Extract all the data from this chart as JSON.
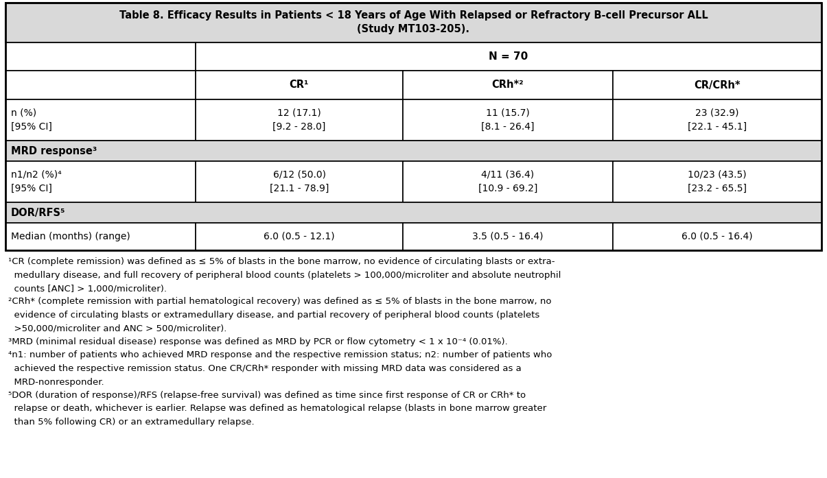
{
  "title_line1": "Table 8. Efficacy Results in Patients < 18 Years of Age With Relapsed or Refractory B-cell Precursor ALL",
  "title_line2": "(Study MT103-205).",
  "title_bg": "#d9d9d9",
  "header_n": "N = 70",
  "col_headers": [
    "CR¹",
    "CRh*²",
    "CR/CRh*"
  ],
  "row1_label_line1": "n (%)",
  "row1_label_line2": "[95% CI]",
  "row1_cr": [
    "12 (17.1)",
    "[9.2 - 28.0]"
  ],
  "row1_crh": [
    "11 (15.7)",
    "[8.1 - 26.4]"
  ],
  "row1_crcrah": [
    "23 (32.9)",
    "[22.1 - 45.1]"
  ],
  "mrd_header": "MRD response³",
  "row2_label_line1": "n1/n2 (%)⁴",
  "row2_label_line2": "[95% CI]",
  "row2_cr": [
    "6/12 (50.0)",
    "[21.1 - 78.9]"
  ],
  "row2_crh": [
    "4/11 (36.4)",
    "[10.9 - 69.2]"
  ],
  "row2_crcrah": [
    "10/23 (43.5)",
    "[23.2 - 65.5]"
  ],
  "dor_header": "DOR/RFS⁵",
  "row3_label": "Median (months) (range)",
  "row3_cr": "6.0 (0.5 - 12.1)",
  "row3_crh": "3.5 (0.5 - 16.4)",
  "row3_crcrah": "6.0 (0.5 - 16.4)",
  "footnote_lines": [
    [
      "¹CR (complete remission) was defined as ≤ 5% of blasts in the bone marrow, no evidence of circulating blasts or extra-",
      false
    ],
    [
      "  medullary disease, and full recovery of peripheral blood counts (platelets > 100,000/microliter and absolute neutrophil",
      false
    ],
    [
      "  counts [ANC] > 1,000/microliter).",
      false
    ],
    [
      "²CRh* (complete remission with partial hematological recovery) was defined as ≤ 5% of blasts in the bone marrow, no",
      false
    ],
    [
      "  evidence of circulating blasts or extramedullary disease, and partial recovery of peripheral blood counts (platelets",
      false
    ],
    [
      "  >50,000/microliter and ANC > 500/microliter).",
      false
    ],
    [
      "³MRD (minimal residual disease) response was defined as MRD by PCR or flow cytometry < 1 x 10⁻⁴ (0.01%).",
      false
    ],
    [
      "⁴n1: number of patients who achieved MRD response and the respective remission status; n2: number of patients who",
      false
    ],
    [
      "  achieved the respective remission status. One CR/CRh* responder with missing MRD data was considered as a",
      false
    ],
    [
      "  MRD-nonresponder.",
      false
    ],
    [
      "⁵DOR (duration of response)/RFS (relapse-free survival) was defined as time since first response of CR or CRh* to",
      false
    ],
    [
      "  relapse or death, whichever is earlier. Relapse was defined as hematological relapse (blasts in bone marrow greater",
      false
    ],
    [
      "  than 5% following CR) or an extramedullary relapse.",
      false
    ]
  ],
  "bg_color": "#ffffff",
  "mrd_dor_bg": "#d9d9d9",
  "font_size": 10.0,
  "title_font_size": 10.5,
  "footnote_font_size": 9.5
}
